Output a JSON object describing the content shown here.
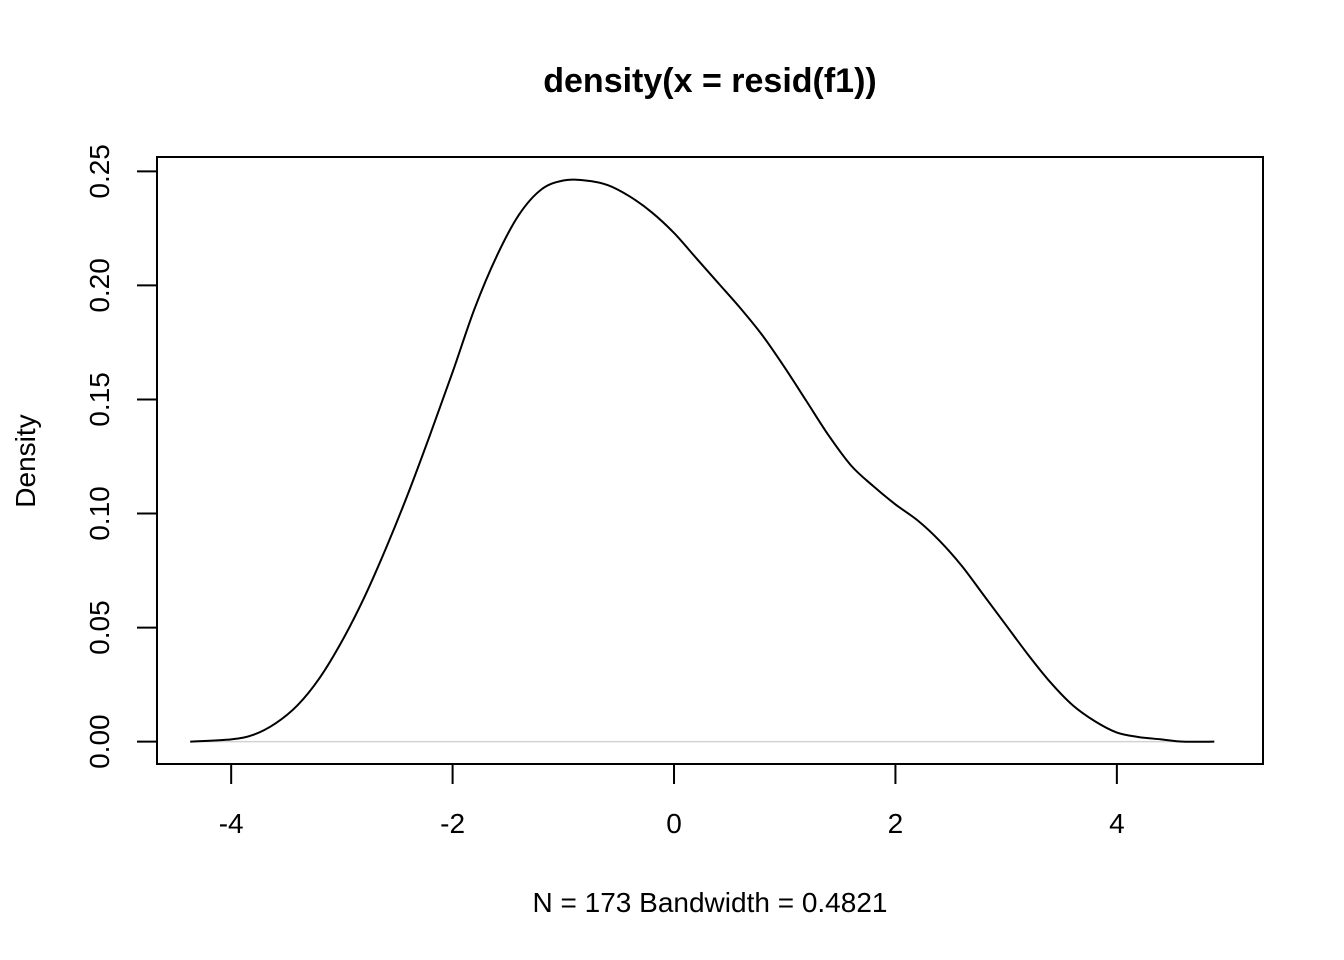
{
  "chart_data": {
    "type": "line",
    "title": "density(x = resid(f1))",
    "xlabel": "N = 173   Bandwidth = 0.4821",
    "ylabel": "Density",
    "xlim": [
      -4.67,
      5.32
    ],
    "ylim": [
      -0.0098,
      0.2563
    ],
    "x_ticks": [
      -4,
      -2,
      0,
      2,
      4
    ],
    "x_tick_labels": [
      "-4",
      "-2",
      "0",
      "2",
      "4"
    ],
    "y_ticks": [
      0.0,
      0.05,
      0.1,
      0.15,
      0.2,
      0.25
    ],
    "y_tick_labels": [
      "0.00",
      "0.05",
      "0.10",
      "0.15",
      "0.20",
      "0.25"
    ],
    "grid": false,
    "baseline": {
      "y": 0,
      "color": "#d3d3d3"
    },
    "series": [
      {
        "color": "#000000",
        "x": [
          -4.37,
          -4.0,
          -3.8,
          -3.6,
          -3.4,
          -3.2,
          -3.0,
          -2.8,
          -2.6,
          -2.4,
          -2.2,
          -2.0,
          -1.8,
          -1.6,
          -1.4,
          -1.2,
          -1.0,
          -0.8,
          -0.6,
          -0.4,
          -0.2,
          0.0,
          0.2,
          0.4,
          0.6,
          0.8,
          1.0,
          1.2,
          1.4,
          1.6,
          1.8,
          2.0,
          2.2,
          2.4,
          2.6,
          2.8,
          3.0,
          3.2,
          3.4,
          3.6,
          3.8,
          4.0,
          4.2,
          4.4,
          4.6,
          4.88
        ],
        "y": [
          0.0,
          0.001,
          0.003,
          0.008,
          0.016,
          0.028,
          0.044,
          0.063,
          0.085,
          0.109,
          0.135,
          0.162,
          0.19,
          0.213,
          0.231,
          0.242,
          0.246,
          0.246,
          0.244,
          0.239,
          0.232,
          0.223,
          0.212,
          0.201,
          0.19,
          0.178,
          0.164,
          0.149,
          0.134,
          0.121,
          0.112,
          0.104,
          0.097,
          0.088,
          0.077,
          0.064,
          0.051,
          0.038,
          0.026,
          0.016,
          0.009,
          0.004,
          0.002,
          0.001,
          0.0,
          0.0
        ]
      }
    ]
  }
}
